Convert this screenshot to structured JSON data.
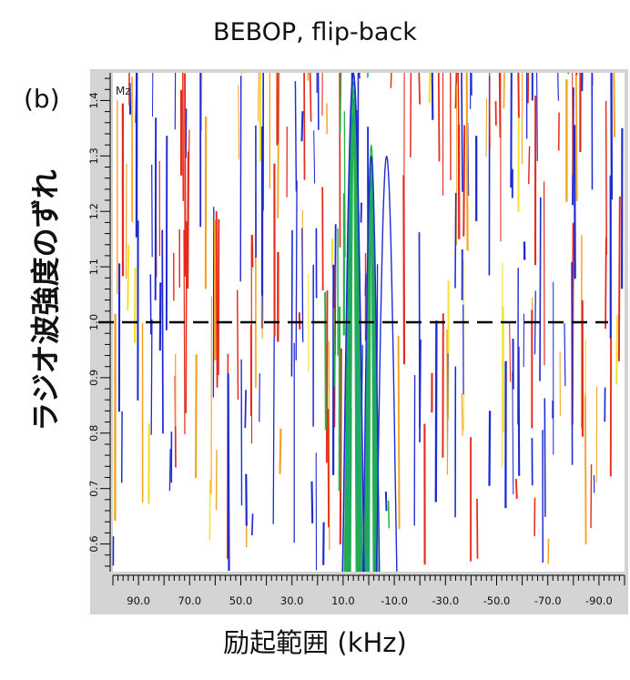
{
  "chart_data": {
    "type": "contour",
    "title": "BEBOP, flip-back",
    "panel_label": "(b)",
    "xlabel": "励起範囲 (kHz)",
    "ylabel": "ラジオ波強度のずれ",
    "corner_label": "Mz",
    "x_ticks": [
      "90.0",
      "70.0",
      "50.0",
      "30.0",
      "10.0",
      "-10.0",
      "-30.0",
      "-50.0",
      "-70.0",
      "-90.0"
    ],
    "y_ticks": [
      "0.6",
      "0.7",
      "0.8",
      "0.9",
      "1.0",
      "1.1",
      "1.2",
      "1.3",
      "1.4"
    ],
    "xlim": [
      100,
      -100
    ],
    "ylim": [
      0.55,
      1.45
    ],
    "reference_line": {
      "y": 1.0,
      "style": "dashed"
    },
    "contour_colors": [
      "#1f2bd1",
      "#e52b1c",
      "#f2a322",
      "#f5e02a",
      "#2bb34a",
      "#14a07a"
    ],
    "strong_lobes_khz": [
      6,
      -1
    ]
  }
}
